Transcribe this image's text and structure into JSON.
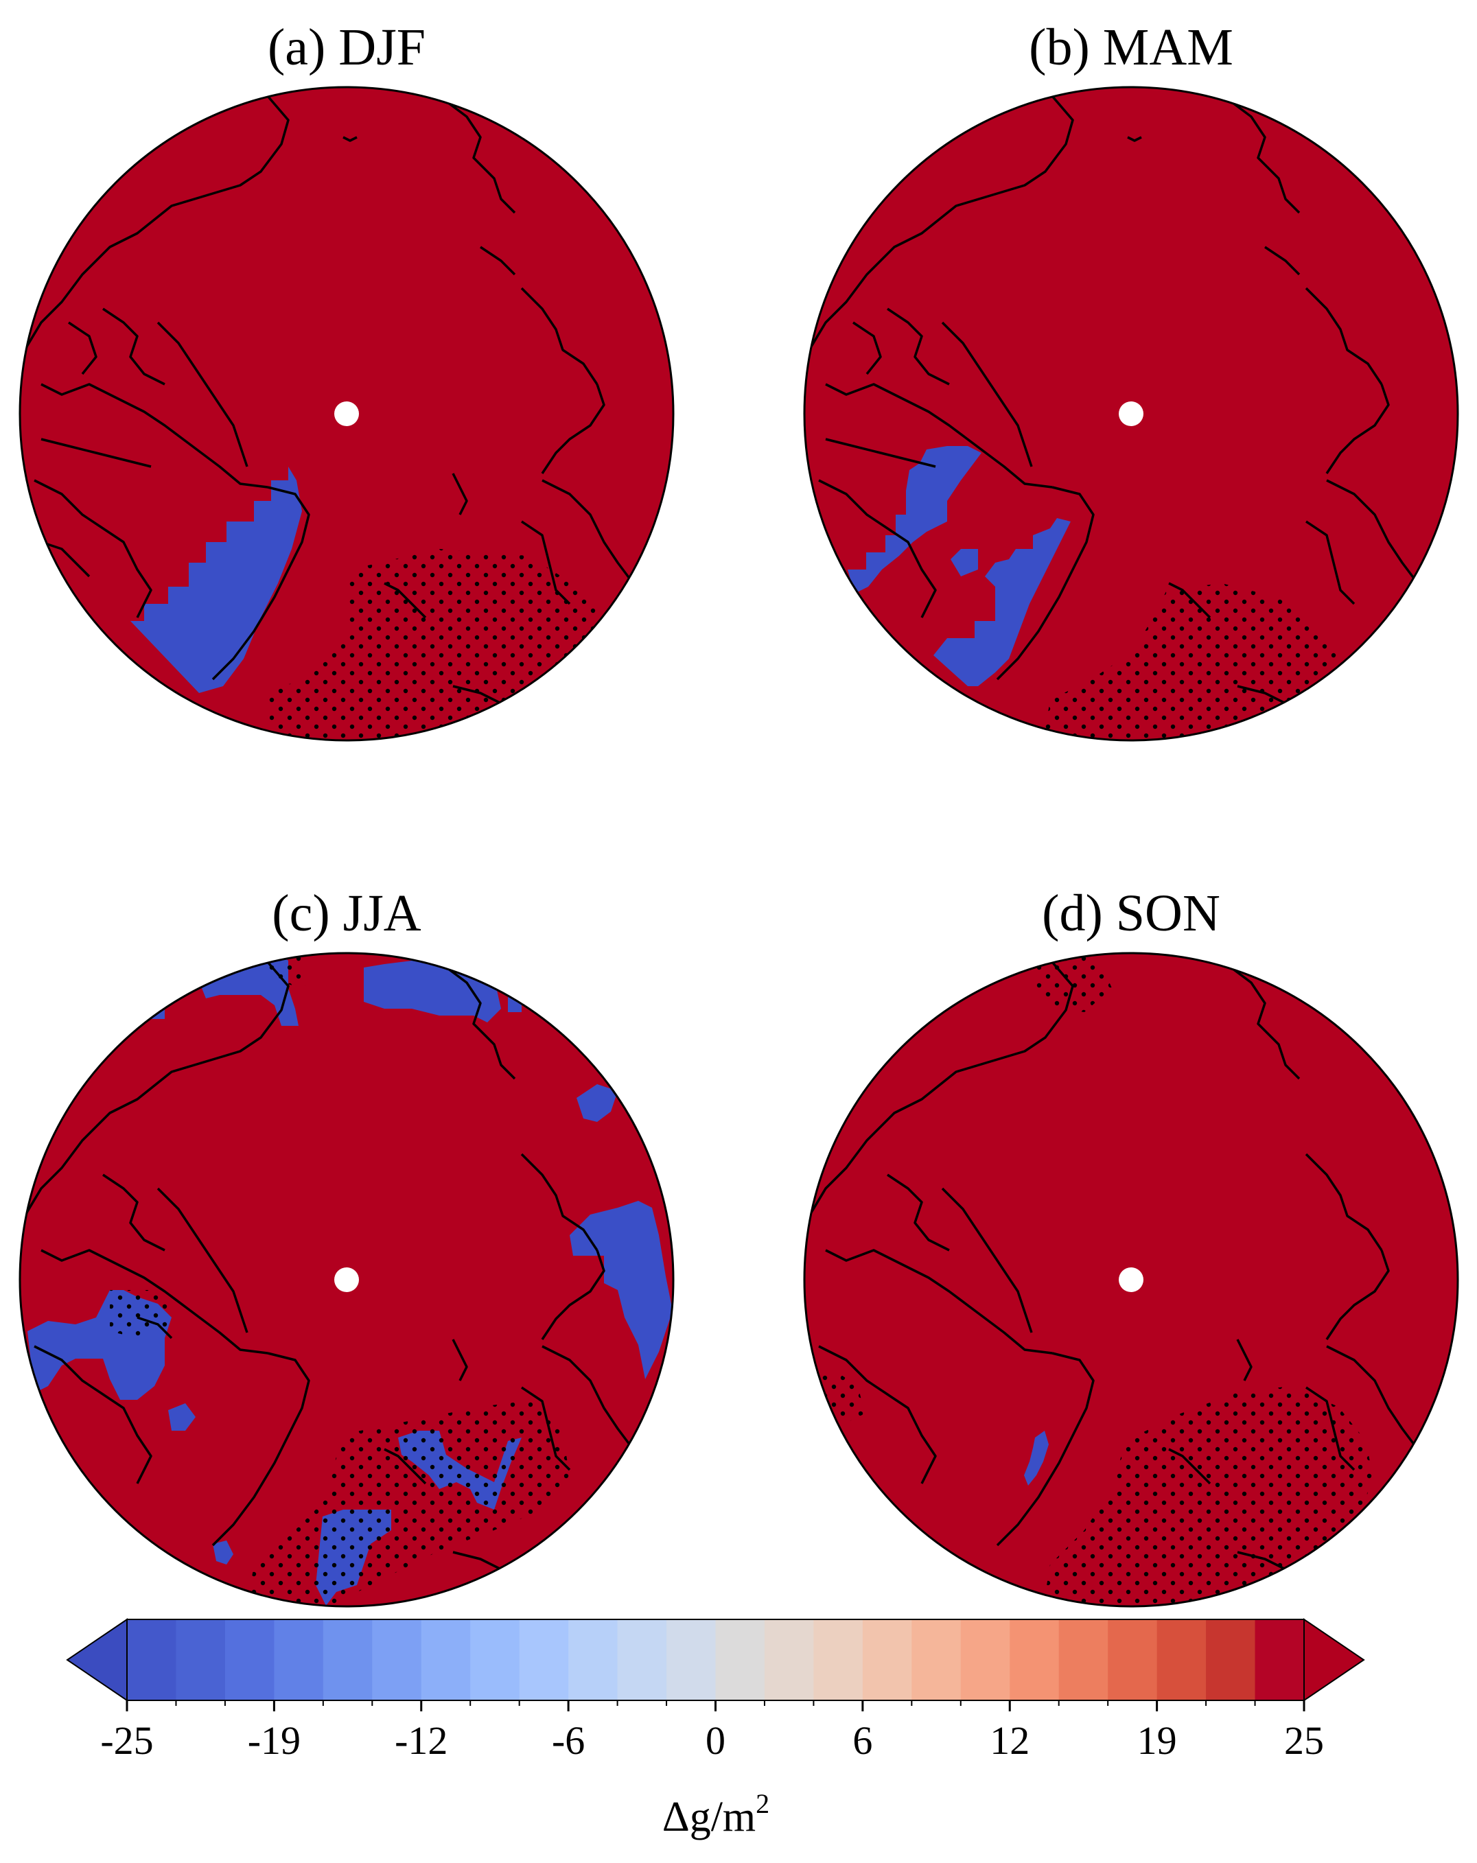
{
  "figure": {
    "panels": [
      {
        "id": "a",
        "title": "(a) DJF"
      },
      {
        "id": "b",
        "title": "(b) MAM"
      },
      {
        "id": "c",
        "title": "(c) JJA"
      },
      {
        "id": "d",
        "title": "(d) SON"
      }
    ],
    "colors": {
      "positive_fill": "#b2001f",
      "negative_fill": "#3a4fc7",
      "coastline": "#000000",
      "stipple": "#000000"
    },
    "colorbar": {
      "label": "Δg/m",
      "label_superscript": "2",
      "min": -25,
      "max": 25,
      "extend": "both",
      "tick_labels": [
        "-25",
        "-19",
        "-12",
        "-6",
        "0",
        "6",
        "12",
        "19",
        "25"
      ],
      "segment_colors": [
        "#4358cb",
        "#4a63d3",
        "#5470de",
        "#6181e7",
        "#6f92ee",
        "#7da0f4",
        "#8caff9",
        "#9abcfc",
        "#a8c6fd",
        "#b7d0f9",
        "#c5d7f3",
        "#d1dbeb",
        "#dcdbdb",
        "#e5d7cf",
        "#ecd0c0",
        "#f2c4ad",
        "#f5b69a",
        "#f6a688",
        "#f49373",
        "#ed7e5f",
        "#e4684d",
        "#d7503c",
        "#c7362f",
        "#b40426"
      ],
      "left_arrow_color": "#3b4cc0",
      "right_arrow_color": "#b2001f"
    }
  }
}
